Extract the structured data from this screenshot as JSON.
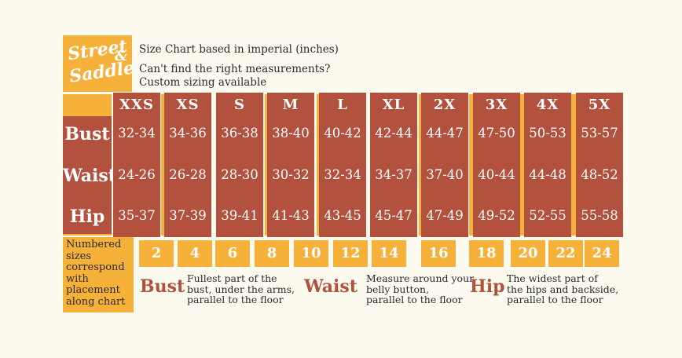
{
  "brand": {
    "line1": "Street",
    "amp": "&",
    "line2": "Saddle"
  },
  "info": {
    "title": "Size Chart based in imperial (inches)",
    "line2": "Can't find the right measurements?",
    "line3": "Custom sizing available"
  },
  "rows": [
    "Bust",
    "Waist",
    "Hip"
  ],
  "sizes": [
    {
      "label": "XXS",
      "bust": "32-34",
      "waist": "24-26",
      "hip": "35-37"
    },
    {
      "label": "XS",
      "bust": "34-36",
      "waist": "26-28",
      "hip": "37-39"
    },
    {
      "label": "S",
      "bust": "36-38",
      "waist": "28-30",
      "hip": "39-41"
    },
    {
      "label": "M",
      "bust": "38-40",
      "waist": "30-32",
      "hip": "41-43"
    },
    {
      "label": "L",
      "bust": "40-42",
      "waist": "32-34",
      "hip": "43-45"
    },
    {
      "label": "XL",
      "bust": "42-44",
      "waist": "34-37",
      "hip": "45-47"
    },
    {
      "label": "2X",
      "bust": "44-47",
      "waist": "37-40",
      "hip": "47-49"
    },
    {
      "label": "3X",
      "bust": "47-50",
      "waist": "40-44",
      "hip": "49-52"
    },
    {
      "label": "4X",
      "bust": "50-53",
      "waist": "44-48",
      "hip": "52-55"
    },
    {
      "label": "5X",
      "bust": "53-57",
      "waist": "48-52",
      "hip": "55-58"
    }
  ],
  "numbered_note": "Numbered sizes correspond with placement along chart",
  "numbered_sizes": [
    "2",
    "4",
    "6",
    "8",
    "10",
    "12",
    "14",
    "16",
    "18",
    "20",
    "22",
    "24"
  ],
  "guides": [
    {
      "term": "Bust",
      "desc1": "Fullest part of the",
      "desc2": "bust, under the arms,",
      "desc3": "parallel to the floor"
    },
    {
      "term": "Waist",
      "desc1": "Measure around your",
      "desc2": "belly button,",
      "desc3": "parallel to the floor"
    },
    {
      "term": "Hip",
      "desc1": "The widest part of",
      "desc2": "the hips and backside,",
      "desc3": "parallel to the floor"
    }
  ],
  "colors": {
    "rust": "#b2513e",
    "orange": "#f6b13b",
    "background": "#fdfbf0"
  }
}
